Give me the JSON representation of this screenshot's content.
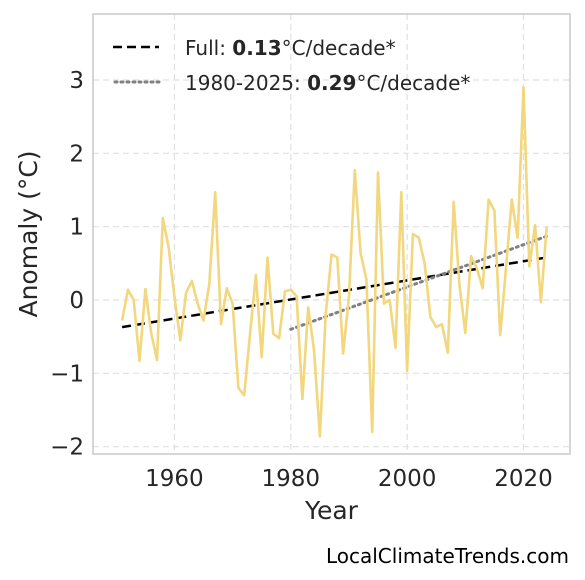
{
  "chart_data": {
    "type": "line",
    "xlabel": "Year",
    "ylabel": "Anomaly (°C)",
    "xlim": [
      1946,
      2028
    ],
    "ylim": [
      -2.1,
      3.9
    ],
    "xticks": [
      1960,
      1980,
      2000,
      2020
    ],
    "xtick_labels": [
      "1960",
      "1980",
      "2000",
      "2020"
    ],
    "yticks": [
      -2,
      -1,
      0,
      1,
      2,
      3
    ],
    "ytick_labels": [
      "−2",
      "−1",
      "0",
      "1",
      "2",
      "3"
    ],
    "grid": true,
    "legend_position": "top-left",
    "colors": {
      "series": "#f2d77e",
      "trend_full": "#000000",
      "trend_recent": "#808080"
    },
    "series": [
      {
        "x": [
          1951,
          1952,
          1953,
          1954,
          1955,
          1956,
          1957,
          1958,
          1959,
          1960,
          1961,
          1962,
          1963,
          1964,
          1965,
          1966,
          1967,
          1968,
          1969,
          1970,
          1971,
          1972,
          1973,
          1974,
          1975,
          1976,
          1977,
          1978,
          1979,
          1980,
          1981,
          1982,
          1983,
          1984,
          1985,
          1986,
          1987,
          1988,
          1989,
          1990,
          1991,
          1992,
          1993,
          1994,
          1995,
          1996,
          1997,
          1998,
          1999,
          2000,
          2001,
          2002,
          2003,
          2004,
          2005,
          2006,
          2007,
          2008,
          2009,
          2010,
          2011,
          2012,
          2013,
          2014,
          2015,
          2016,
          2017,
          2018,
          2019,
          2020,
          2021,
          2022,
          2023,
          2024
        ],
        "y": [
          -0.28,
          0.14,
          0.0,
          -0.83,
          0.15,
          -0.45,
          -0.82,
          1.12,
          0.72,
          0.05,
          -0.55,
          0.1,
          0.26,
          -0.05,
          -0.28,
          0.22,
          1.47,
          -0.33,
          0.16,
          -0.05,
          -1.2,
          -1.3,
          -0.45,
          0.34,
          -0.78,
          0.58,
          -0.46,
          -0.52,
          0.12,
          0.14,
          0.05,
          -1.35,
          -0.1,
          -0.68,
          -1.86,
          -0.2,
          0.62,
          0.58,
          -0.73,
          0.05,
          1.77,
          0.64,
          0.28,
          -1.8,
          1.74,
          -0.05,
          0.0,
          -0.65,
          1.47,
          -0.97,
          0.9,
          0.85,
          0.5,
          -0.23,
          -0.37,
          -0.33,
          -0.72,
          1.34,
          0.2,
          -0.45,
          0.6,
          0.43,
          0.16,
          1.37,
          1.22,
          -0.48,
          0.44,
          1.37,
          0.85,
          2.9,
          0.46,
          1.02,
          -0.03,
          1.0
        ]
      }
    ],
    "trends": [
      {
        "label_prefix": "Full: ",
        "label_value": "0.13",
        "label_suffix": "°C/decade*",
        "x": [
          1951,
          2024
        ],
        "y": [
          -0.37,
          0.58
        ],
        "style": "dashed"
      },
      {
        "label_prefix": "1980-2025: ",
        "label_value": "0.29",
        "label_suffix": "°C/decade*",
        "x": [
          1980,
          2024
        ],
        "y": [
          -0.4,
          0.87
        ],
        "style": "dotted"
      }
    ]
  },
  "watermark": "LocalClimateTrends.com"
}
